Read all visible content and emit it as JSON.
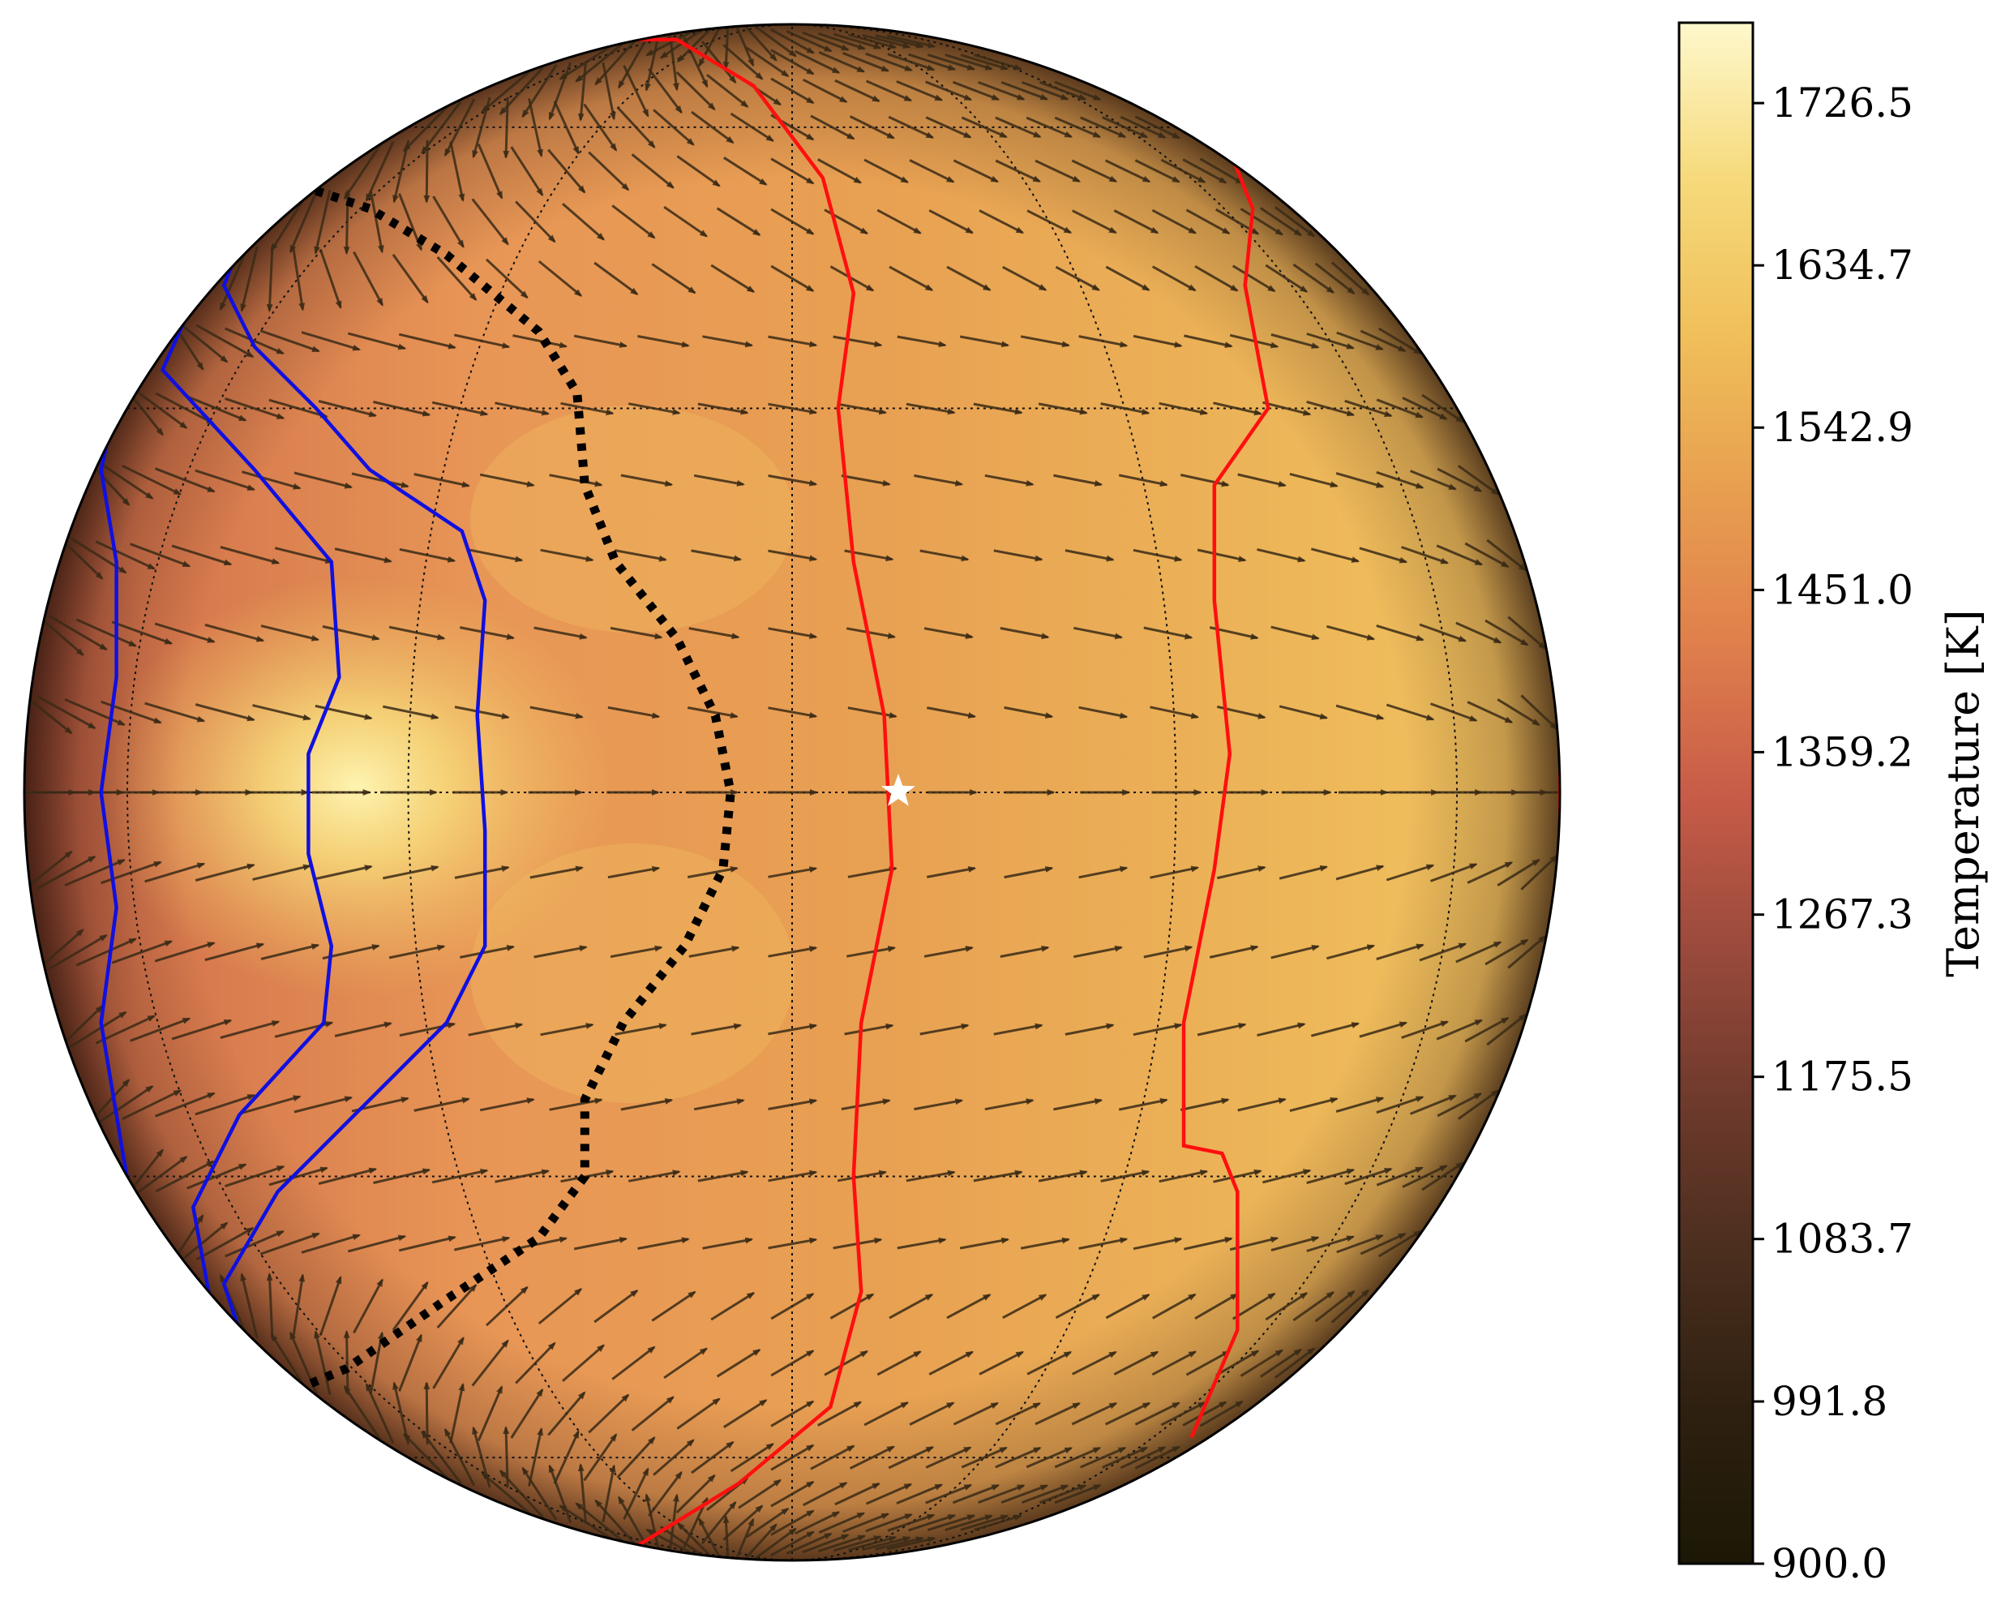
{
  "chart_data": {
    "type": "heatmap",
    "projection": "orthographic",
    "title": "",
    "colorbar": {
      "label": "Temperature [K]",
      "range": [
        900.0,
        1772.0
      ],
      "ticks": [
        "900.0",
        "991.8",
        "1083.7",
        "1175.5",
        "1267.3",
        "1359.2",
        "1451.0",
        "1542.9",
        "1634.7",
        "1726.5"
      ],
      "colors": [
        "#1c1805",
        "#2e2010",
        "#4a2e1e",
        "#6e3a2c",
        "#9a4a3c",
        "#c85c48",
        "#e0804c",
        "#e8a050",
        "#f0c05a",
        "#f6da7c",
        "#fef8cc"
      ]
    },
    "temperature_field": {
      "hot_spot": {
        "lon_deg": -58,
        "lat_deg": 2,
        "temperature": 1760
      },
      "limb_temperature": 950
    },
    "overlays": [
      {
        "name": "blue contour",
        "color": "#1010e0"
      },
      {
        "name": "red contour",
        "color": "#ff0f0f"
      },
      {
        "name": "dotted contour",
        "color": "#000000"
      },
      {
        "name": "substellar point",
        "symbol": "white-star"
      }
    ],
    "wind_vectors": {
      "color": "#3a2a16",
      "direction": "eastward"
    },
    "graticule": {
      "parallels_deg": [
        -60,
        -30,
        0,
        30,
        60
      ],
      "meridians_deg": [
        -90,
        -60,
        -30,
        0,
        30,
        60,
        90
      ],
      "style": "dotted"
    }
  }
}
